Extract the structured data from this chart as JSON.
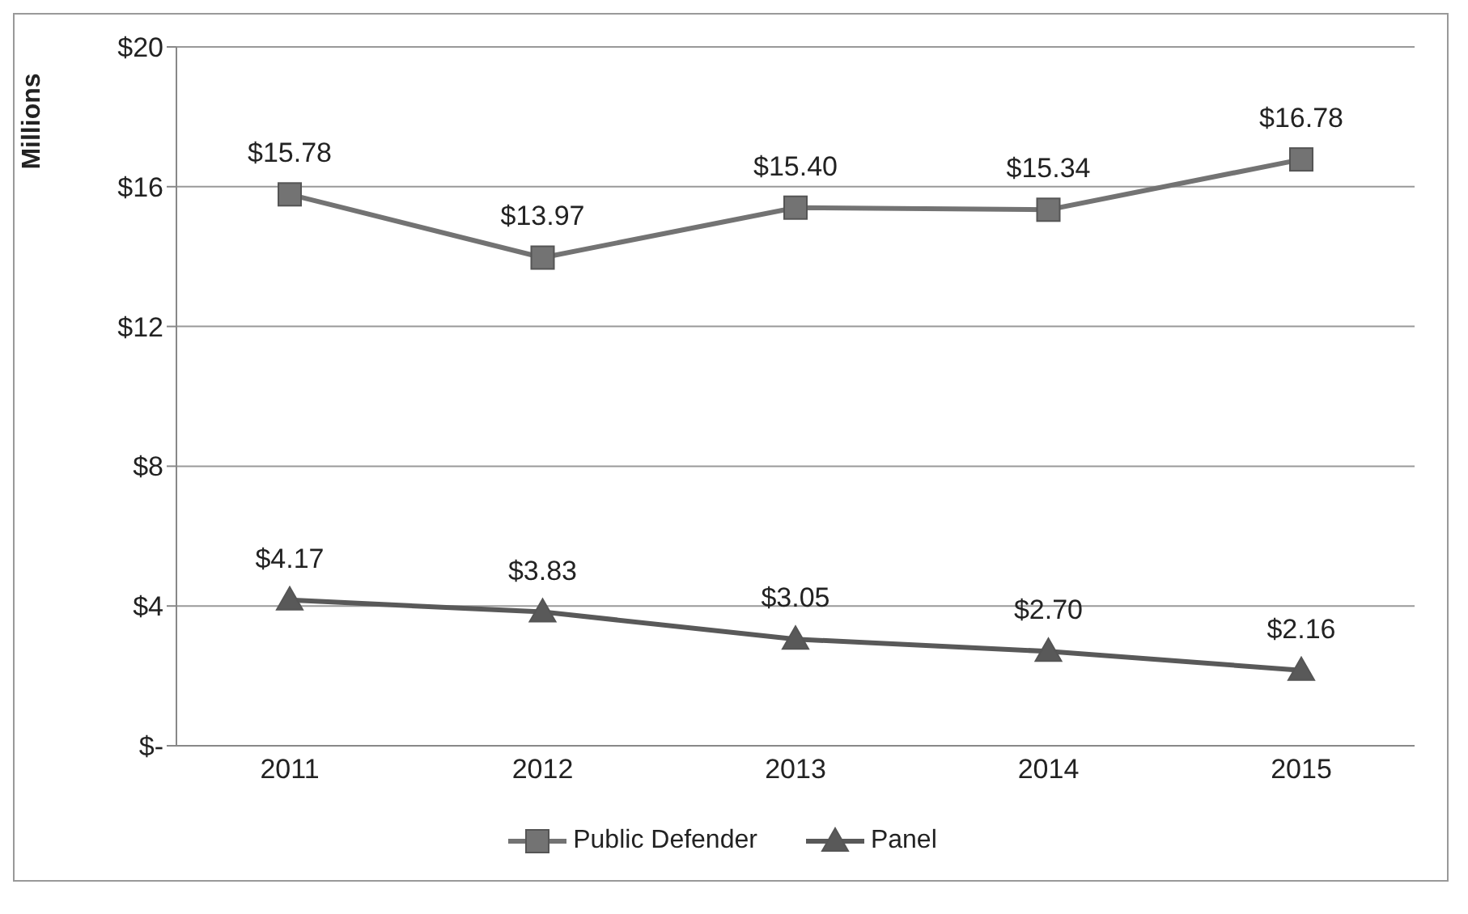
{
  "chart_data": {
    "type": "line",
    "ylabel": "Millions",
    "categories": [
      "2011",
      "2012",
      "2013",
      "2014",
      "2015"
    ],
    "series": [
      {
        "name": "Public Defender",
        "color": "#737373",
        "marker": "square",
        "values": [
          15.78,
          13.97,
          15.4,
          15.34,
          16.78
        ],
        "value_labels": [
          "$15.78",
          "$13.97",
          "$15.40",
          "$15.34",
          "$16.78"
        ]
      },
      {
        "name": "Panel",
        "color": "#595959",
        "marker": "triangle",
        "values": [
          4.17,
          3.83,
          3.05,
          2.7,
          2.16
        ],
        "value_labels": [
          "$4.17",
          "$3.83",
          "$3.05",
          "$2.70",
          "$2.16"
        ]
      }
    ],
    "ylim": [
      0,
      20
    ],
    "yticks": [
      {
        "value": 0,
        "label": "$-"
      },
      {
        "value": 4,
        "label": "$4"
      },
      {
        "value": 8,
        "label": "$8"
      },
      {
        "value": 12,
        "label": "$12"
      },
      {
        "value": 16,
        "label": "$16"
      },
      {
        "value": 20,
        "label": "$20"
      }
    ],
    "grid": "y",
    "legend": "bottom",
    "line_style": "solid"
  }
}
